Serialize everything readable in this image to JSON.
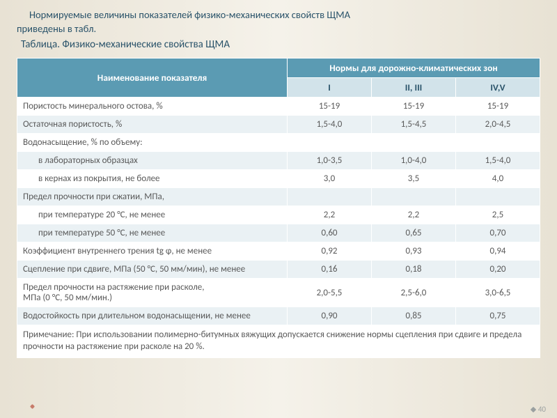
{
  "intro_lines": [
    "Нормируемые величины показателей физико-механических свойств ЩМА",
    "приведены в табл."
  ],
  "table_title": "Таблица. Физико-механические свойства ЩМА",
  "header": {
    "name_col": "Наименование показателя",
    "zones_top": "Нормы для дорожно-климатических зон",
    "zones": [
      "I",
      "II, III",
      "IV,V"
    ]
  },
  "rows": [
    {
      "label": "Пористость минерального остова, %",
      "indent": false,
      "vals": [
        "15-19",
        "15-19",
        "15-19"
      ]
    },
    {
      "label": "Остаточная пористость, %",
      "indent": false,
      "vals": [
        "1,5-4,0",
        "1,5-4,5",
        "2,0-4,5"
      ]
    },
    {
      "label": "Водонасыщение, % по объему:",
      "indent": false,
      "vals": [
        "",
        "",
        ""
      ]
    },
    {
      "label": "в лабораторных образцах",
      "indent": true,
      "vals": [
        "1,0-3,5",
        "1,0-4,0",
        "1,5-4,0"
      ]
    },
    {
      "label": "в кернах из покрытия, не более",
      "indent": true,
      "vals": [
        "3,0",
        "3,5",
        "4,0"
      ]
    },
    {
      "label": "Предел прочности при сжатии, МПа,",
      "indent": false,
      "vals": [
        "",
        "",
        ""
      ]
    },
    {
      "label": "при температуре 20 °С, не менее",
      "indent": true,
      "vals": [
        "2,2",
        "2,2",
        "2,5"
      ]
    },
    {
      "label": "при температуре 50 °С, не менее",
      "indent": true,
      "vals": [
        "0,60",
        "0,65",
        "0,70"
      ]
    },
    {
      "label": "Коэффициент внутреннего трения tg φ, не менее",
      "indent": false,
      "vals": [
        "0,92",
        "0,93",
        "0,94"
      ]
    },
    {
      "label": "Сцепление при сдвиге, МПа (50 °С, 50 мм/мин), не менее",
      "indent": false,
      "vals": [
        "0,16",
        "0,18",
        "0,20"
      ]
    },
    {
      "label": "Предел прочности на растяжение при расколе,\nМПа (0 °С, 50 мм/мин.)",
      "indent": false,
      "vals": [
        "2,0-5,5",
        "2,5-6,0",
        "3,0-6,5"
      ]
    },
    {
      "label": "Водостойкость при длительном водонасыщении, не менее",
      "indent": false,
      "vals": [
        "0,90",
        "0,85",
        "0,75"
      ]
    }
  ],
  "note": "Примечание: При использовании полимерно-битумных вяжущих допускается снижение нормы сцепления при сдвиге и предела прочности на растяжение при расколе на 20 %.",
  "page_number": "40",
  "colors": {
    "header_bg": "#5b9bb3",
    "subhead_bg": "#d2e3ea",
    "row_alt_bg": "#eaf1f4",
    "text": "#595959",
    "title_text": "#2a536a"
  }
}
